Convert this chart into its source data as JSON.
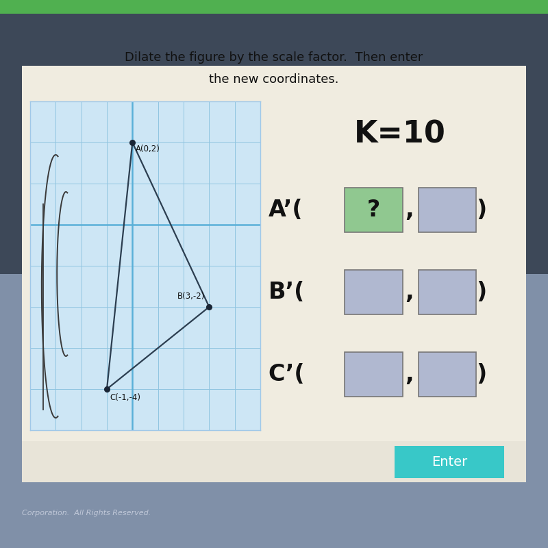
{
  "title_line1": "Dilate the figure by the scale factor.  Then enter",
  "title_line2": "the new coordinates.",
  "outer_bg_top": "#3d4a5c",
  "outer_bg_bottom": "#8a9ab0",
  "card_bg": "#f0ece0",
  "grid_bg": "#cde6f5",
  "k_text": "K=10",
  "points": {
    "A": [
      0,
      2
    ],
    "B": [
      3,
      -2
    ],
    "C": [
      -1,
      -4
    ]
  },
  "point_labels": {
    "A": "A(0,2)",
    "B": "B(3,-2)",
    "C": "C(-1,-4)"
  },
  "triangle_color": "#2c3e50",
  "dot_color": "#1a2535",
  "grid_line_color": "#90c4e0",
  "axis_color": "#5ab0d8",
  "enter_btn_color": "#38c8c8",
  "enter_text": "Enter",
  "box_green": "#90c890",
  "box_blue_gray": "#b0b8d0",
  "bottom_bar_bg": "#ddd8cc",
  "copyright": "Corporation.  All Rights Reserved.",
  "green_bar_top": "#4caf50",
  "curve_color": "#3a3a3a"
}
